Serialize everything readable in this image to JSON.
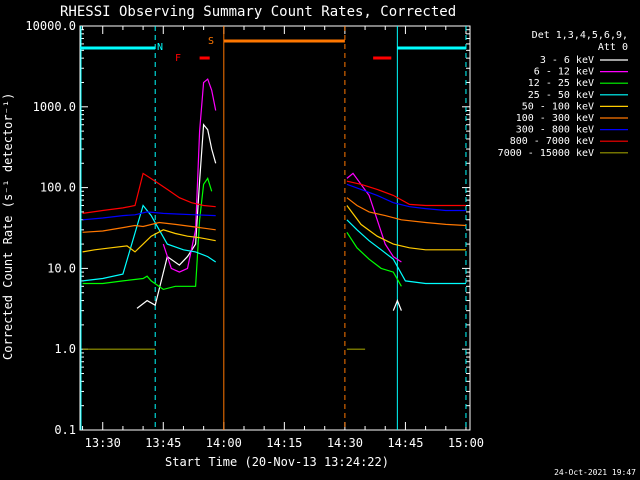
{
  "chart_data": {
    "type": "line",
    "title": "RHESSI Observing Summary Count Rates, Corrected",
    "xlabel": "Start Time (20-Nov-13 13:24:22)",
    "ylabel": "Corrected Count Rate (s⁻¹ detector⁻¹)",
    "y_scale": "log",
    "ylim": [
      0.1,
      10000
    ],
    "xlim": [
      "13:24:22",
      "15:01:00"
    ],
    "x_ticks": [
      "13:30",
      "13:45",
      "14:00",
      "14:15",
      "14:30",
      "14:45",
      "15:00"
    ],
    "y_ticks": [
      "0.1",
      "1.0",
      "10.0",
      "100.0",
      "1000.0",
      "10000.0"
    ],
    "legend_title": "Det 1,3,4,5,6,9,\nAtt 0",
    "legend_position": "right",
    "date_stamp": "24-Oct-2021 19:47",
    "flag_labels": {
      "N": "N",
      "F": "F",
      "S": "S"
    },
    "series": [
      {
        "name": "3 - 6 keV",
        "color": "#ffffff",
        "points": [
          [
            "13:38:30",
            3.2
          ],
          [
            "13:41",
            4
          ],
          [
            "13:43",
            3.5
          ],
          [
            "13:46",
            14
          ],
          [
            "13:49",
            11
          ],
          [
            "13:51",
            14
          ],
          [
            "13:53",
            20
          ],
          [
            "13:54",
            120
          ],
          [
            "13:55",
            600
          ],
          [
            "13:56",
            520
          ],
          [
            "13:57",
            300
          ],
          [
            "13:58",
            200
          ],
          [
            "14:42",
            3
          ],
          [
            "14:43",
            4
          ],
          [
            "14:44",
            3
          ]
        ]
      },
      {
        "name": "6 - 12 keV",
        "color": "#ff00ff",
        "points": [
          [
            "13:45",
            20
          ],
          [
            "13:47",
            10
          ],
          [
            "13:49",
            9
          ],
          [
            "13:51",
            10
          ],
          [
            "13:53",
            30
          ],
          [
            "13:54",
            500
          ],
          [
            "13:55",
            2000
          ],
          [
            "13:56",
            2200
          ],
          [
            "13:57",
            1600
          ],
          [
            "13:58",
            900
          ],
          [
            "14:30:30",
            130
          ],
          [
            "14:32",
            150
          ],
          [
            "14:34",
            110
          ],
          [
            "14:36",
            80
          ],
          [
            "14:38",
            40
          ],
          [
            "14:40",
            20
          ],
          [
            "14:42",
            14
          ],
          [
            "14:44",
            12
          ]
        ]
      },
      {
        "name": "12 - 25 keV",
        "color": "#00ff00",
        "points": [
          [
            "13:25",
            6.5
          ],
          [
            "13:30",
            6.5
          ],
          [
            "13:35",
            7
          ],
          [
            "13:40",
            7.5
          ],
          [
            "13:41",
            8
          ],
          [
            "13:42",
            7
          ],
          [
            "13:45",
            5.5
          ],
          [
            "13:48",
            6
          ],
          [
            "13:51",
            6
          ],
          [
            "13:53",
            6
          ],
          [
            "13:54",
            40
          ],
          [
            "13:55",
            110
          ],
          [
            "13:56",
            130
          ],
          [
            "13:57",
            90
          ],
          [
            "14:30:30",
            28
          ],
          [
            "14:33",
            18
          ],
          [
            "14:36",
            13
          ],
          [
            "14:39",
            10
          ],
          [
            "14:42",
            9
          ],
          [
            "14:44",
            6
          ]
        ]
      },
      {
        "name": "25 - 50 keV",
        "color": "#00ffff",
        "points": [
          [
            "13:25",
            7
          ],
          [
            "13:30",
            7.5
          ],
          [
            "13:35",
            8.5
          ],
          [
            "13:40",
            60
          ],
          [
            "13:42",
            45
          ],
          [
            "13:44",
            30
          ],
          [
            "13:46",
            20
          ],
          [
            "13:50",
            17
          ],
          [
            "13:53",
            16
          ],
          [
            "13:56",
            14
          ],
          [
            "13:58",
            12
          ],
          [
            "14:30:30",
            40
          ],
          [
            "14:33",
            30
          ],
          [
            "14:36",
            22
          ],
          [
            "14:39",
            17
          ],
          [
            "14:42",
            13
          ],
          [
            "14:45",
            7
          ],
          [
            "14:50",
            6.5
          ],
          [
            "14:55",
            6.5
          ],
          [
            "15:00",
            6.5
          ]
        ]
      },
      {
        "name": "50 - 100 keV",
        "color": "#ffcc00",
        "points": [
          [
            "13:25",
            16
          ],
          [
            "13:28",
            17
          ],
          [
            "13:32",
            18
          ],
          [
            "13:36",
            19
          ],
          [
            "13:38",
            16
          ],
          [
            "13:40",
            20
          ],
          [
            "13:42",
            25
          ],
          [
            "13:45",
            30
          ],
          [
            "13:48",
            27
          ],
          [
            "13:51",
            25
          ],
          [
            "13:54",
            24
          ],
          [
            "13:58",
            22
          ],
          [
            "14:30:30",
            60
          ],
          [
            "14:34",
            35
          ],
          [
            "14:38",
            25
          ],
          [
            "14:42",
            20
          ],
          [
            "14:46",
            18
          ],
          [
            "14:50",
            17
          ],
          [
            "14:55",
            17
          ],
          [
            "15:00",
            17
          ]
        ]
      },
      {
        "name": "100 - 300 keV",
        "color": "#ff7700",
        "points": [
          [
            "13:25",
            28
          ],
          [
            "13:30",
            29
          ],
          [
            "13:35",
            32
          ],
          [
            "13:38",
            34
          ],
          [
            "13:40",
            33
          ],
          [
            "13:44",
            37
          ],
          [
            "13:48",
            35
          ],
          [
            "13:52",
            33
          ],
          [
            "13:56",
            31
          ],
          [
            "13:58",
            30
          ],
          [
            "14:30:30",
            75
          ],
          [
            "14:33",
            60
          ],
          [
            "14:36",
            50
          ],
          [
            "14:40",
            45
          ],
          [
            "14:44",
            40
          ],
          [
            "14:50",
            37
          ],
          [
            "14:55",
            35
          ],
          [
            "15:00",
            34
          ]
        ]
      },
      {
        "name": "300 - 800 keV",
        "color": "#0000ff",
        "points": [
          [
            "13:25",
            40
          ],
          [
            "13:30",
            42
          ],
          [
            "13:35",
            45
          ],
          [
            "13:38",
            46
          ],
          [
            "13:41",
            50
          ],
          [
            "13:45",
            48
          ],
          [
            "13:49",
            47
          ],
          [
            "13:53",
            46
          ],
          [
            "13:58",
            45
          ],
          [
            "14:30:30",
            110
          ],
          [
            "14:34",
            95
          ],
          [
            "14:38",
            80
          ],
          [
            "14:42",
            65
          ],
          [
            "14:46",
            58
          ],
          [
            "14:50",
            55
          ],
          [
            "14:55",
            52
          ],
          [
            "15:00",
            52
          ]
        ]
      },
      {
        "name": "800 - 7000 keV",
        "color": "#ff0000",
        "points": [
          [
            "13:25",
            48
          ],
          [
            "13:30",
            52
          ],
          [
            "13:35",
            56
          ],
          [
            "13:38",
            60
          ],
          [
            "13:40",
            150
          ],
          [
            "13:43",
            120
          ],
          [
            "13:46",
            95
          ],
          [
            "13:49",
            75
          ],
          [
            "13:52",
            65
          ],
          [
            "13:55",
            60
          ],
          [
            "13:58",
            58
          ],
          [
            "14:30:30",
            120
          ],
          [
            "14:34",
            110
          ],
          [
            "14:38",
            95
          ],
          [
            "14:42",
            80
          ],
          [
            "14:46",
            62
          ],
          [
            "14:50",
            60
          ],
          [
            "14:55",
            60
          ],
          [
            "15:00",
            60
          ]
        ]
      },
      {
        "name": "7000 - 15000 keV",
        "color": "#999900",
        "points": [
          [
            "13:25",
            1.0
          ],
          [
            "13:30",
            1.0
          ],
          [
            "13:35",
            1.0
          ],
          [
            "13:40",
            1.0
          ],
          [
            "13:43",
            1.0
          ],
          [
            "14:30:30",
            1.0
          ],
          [
            "14:35",
            1.0
          ]
        ]
      }
    ]
  },
  "flags": {
    "N_color": "#00ffff",
    "F_color": "#ff0000",
    "S_color": "#ff7700",
    "N_segments": [
      [
        "13:24:22",
        "13:43:00"
      ],
      [
        "14:43:00",
        "15:00:00"
      ]
    ],
    "F_segments": [
      [
        "13:54:00",
        "13:56:30"
      ],
      [
        "14:37:00",
        "14:41:30"
      ]
    ],
    "S_segments": [
      [
        "14:00:00",
        "14:30:00"
      ]
    ],
    "boundary_lines": [
      {
        "time": "13:43:00",
        "color": "#00ffff",
        "dashed": true
      },
      {
        "time": "14:00:00",
        "color": "#ff7700",
        "dashed": false
      },
      {
        "time": "14:30:00",
        "color": "#ff7700",
        "dashed": true
      },
      {
        "time": "14:43:00",
        "color": "#00ffff",
        "dashed": false
      },
      {
        "time": "15:00:00",
        "color": "#00ffff",
        "dashed": true
      }
    ]
  }
}
